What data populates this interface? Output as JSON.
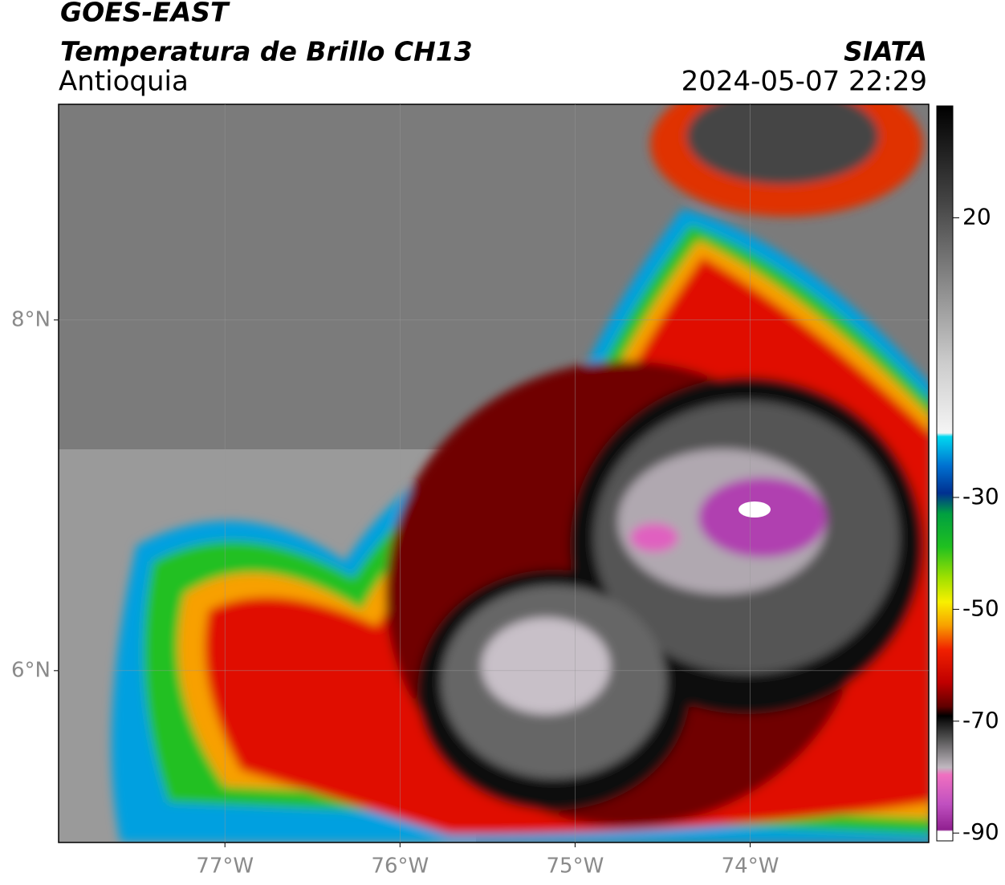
{
  "header": {
    "title": "GOES-EAST",
    "subtitle": "Temperatura de Brillo CH13",
    "region": "Antioquia",
    "source": "SIATA",
    "datetime": "2024-05-07 22:29"
  },
  "map": {
    "xlim": [
      -77.95,
      -72.98
    ],
    "ylim": [
      5.02,
      9.23
    ],
    "xticks": [
      {
        "value": -77,
        "label": "77°W"
      },
      {
        "value": -76,
        "label": "76°W"
      },
      {
        "value": -75,
        "label": "75°W"
      },
      {
        "value": -74,
        "label": "74°W"
      }
    ],
    "yticks": [
      {
        "value": 8,
        "label": "8°N"
      },
      {
        "value": 6,
        "label": "6°N"
      }
    ],
    "grid": true
  },
  "colorbar": {
    "lim": [
      -91.4,
      40
    ],
    "ticks": [
      20,
      -30,
      -50,
      -70,
      -90
    ]
  }
}
